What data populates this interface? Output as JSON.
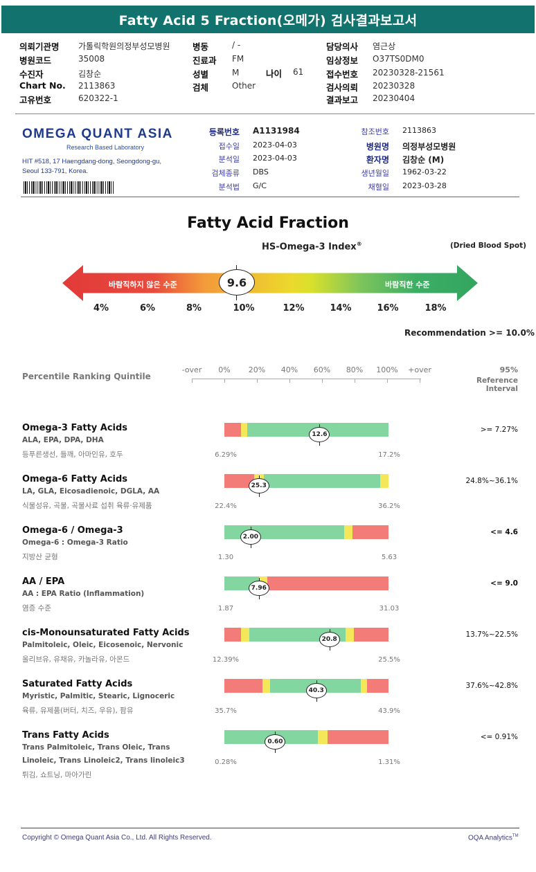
{
  "title": "Fatty Acid 5 Fraction(오메가) 검사결과보고서",
  "header": {
    "col1": [
      {
        "label": "의뢰기관명",
        "value": "가톨릭학원의정부성모병원"
      },
      {
        "label": "병원코드",
        "value": "35008"
      },
      {
        "label": "수진자",
        "value": "김창순"
      },
      {
        "label": "Chart No.",
        "value": "2113863"
      },
      {
        "label": "고유번호",
        "value": "620322-1"
      }
    ],
    "col2": [
      {
        "label": "병동",
        "value": "/ -"
      },
      {
        "label": "진료과",
        "value": "FM"
      },
      {
        "label": "성별",
        "value": "M"
      },
      {
        "label": "검체",
        "value": "Other"
      }
    ],
    "age": {
      "label": "나이",
      "value": "61"
    },
    "col3": [
      {
        "label": "담당의사",
        "value": "염근상"
      },
      {
        "label": "임상정보",
        "value": "O37TS0DM0"
      },
      {
        "label": "접수번호",
        "value": "20230328-21561"
      },
      {
        "label": "검사의뢰",
        "value": "20230328"
      },
      {
        "label": "결과보고",
        "value": "20230404"
      }
    ]
  },
  "lab": {
    "logo_main": "OMEGA QUANT ASIA",
    "logo_sub": "Research Based Laboratory",
    "address1": "HIT #518, 17 Haengdang-dong, Seongdong-gu,",
    "address2": "Seoul 133-791, Korea.",
    "left": [
      {
        "label": "등록번호",
        "value": "A1131984"
      },
      {
        "label": "접수일",
        "value": "2023-04-03"
      },
      {
        "label": "분석일",
        "value": "2023-04-03"
      },
      {
        "label": "검체종류",
        "value": "DBS"
      },
      {
        "label": "분석법",
        "value": "G/C"
      }
    ],
    "right": [
      {
        "label": "참조번호",
        "value": "2113863"
      },
      {
        "label": "병원명",
        "value": "의정부성모병원"
      },
      {
        "label": "환자명",
        "value": "김창순 (M)"
      },
      {
        "label": "생년월일",
        "value": "1962-03-22"
      },
      {
        "label": "채혈일",
        "value": "2023-03-28"
      }
    ]
  },
  "fraction": {
    "title": "Fatty Acid Fraction",
    "subtitle": "HS-Omega-3 Index",
    "subtitle_mark": "®",
    "specimen": "(Dried Blood Spot)",
    "bad_label": "바람직하지 않은 수준",
    "good_label": "바람직한 수준",
    "score": "9.6",
    "scale": [
      "4%",
      "6%",
      "8%",
      "10%",
      "12%",
      "14%",
      "16%",
      "18%"
    ],
    "recommendation": "Recommendation  >= 10.0%"
  },
  "percentile": {
    "label": "Percentile Ranking Quintile",
    "axis": [
      "-over",
      "0%",
      "20%",
      "40%",
      "60%",
      "80%",
      "100%",
      "+over"
    ],
    "ref_top": "95%",
    "ref_bottom": "Reference Interval"
  },
  "rows": [
    {
      "name": "Omega-3 Fatty Acids",
      "sub": "ALA, EPA, DPA, DHA",
      "food": "등푸른생선, 들깨, 아마인유, 호두",
      "min": "6.29%",
      "max": "17.2%",
      "value": "12.6",
      "position": 0.58,
      "ref": ">= 7.27%",
      "ref_bold": false,
      "segments": [
        [
          "#f47c78",
          0.1
        ],
        [
          "#f4e85a",
          0.04
        ],
        [
          "#84d6a0",
          0.86
        ]
      ]
    },
    {
      "name": "Omega-6 Fatty Acids",
      "sub": "LA, GLA, Eicosadienoic, DGLA, AA",
      "food": "식물성유, 곡물, 곡물사료 섭취 육류·유제품",
      "min": "22.4%",
      "max": "36.2%",
      "value": "25.3",
      "position": 0.21,
      "ref": "24.8%~36.1%",
      "ref_bold": false,
      "segments": [
        [
          "#f47c78",
          0.18
        ],
        [
          "#f4e85a",
          0.06
        ],
        [
          "#84d6a0",
          0.71
        ],
        [
          "#f4e85a",
          0.05
        ]
      ]
    },
    {
      "name": "Omega-6 / Omega-3",
      "sub": "Omega-6 : Omega-3 Ratio",
      "food": "지방산 균형",
      "min": "1.30",
      "max": "5.63",
      "value": "2.00",
      "position": 0.16,
      "ref": "<= 4.6",
      "ref_bold": true,
      "segments": [
        [
          "#84d6a0",
          0.73
        ],
        [
          "#f4e85a",
          0.05
        ],
        [
          "#f47c78",
          0.22
        ]
      ]
    },
    {
      "name": "AA / EPA",
      "sub": "AA : EPA Ratio (Inflammation)",
      "food": "염증 수준",
      "min": "1.87",
      "max": "31.03",
      "value": "7.96",
      "position": 0.21,
      "ref": "<= 9.0",
      "ref_bold": true,
      "segments": [
        [
          "#84d6a0",
          0.21
        ],
        [
          "#f4e85a",
          0.05
        ],
        [
          "#f47c78",
          0.74
        ]
      ]
    },
    {
      "name": "cis-Monounsaturated Fatty Acids",
      "sub": "Palmitoleic, Oleic, Eicosenoic, Nervonic",
      "food": "올리브유, 유채유, 카놀라유, 아몬드",
      "min": "12.39%",
      "max": "25.5%",
      "value": "20.8",
      "position": 0.64,
      "ref": "13.7%~22.5%",
      "ref_bold": false,
      "segments": [
        [
          "#f47c78",
          0.1
        ],
        [
          "#f4e85a",
          0.05
        ],
        [
          "#84d6a0",
          0.59
        ],
        [
          "#f4e85a",
          0.05
        ],
        [
          "#f47c78",
          0.21
        ]
      ]
    },
    {
      "name": "Saturated Fatty Acids",
      "sub": "Myristic, Palmitic, Stearic, Lignoceric",
      "food": "육류, 유제품(버터, 치즈, 우유), 팜유",
      "min": "35.7%",
      "max": "43.9%",
      "value": "40.3",
      "position": 0.56,
      "ref": "37.6%~42.8%",
      "ref_bold": false,
      "segments": [
        [
          "#f47c78",
          0.23
        ],
        [
          "#f4e85a",
          0.05
        ],
        [
          "#84d6a0",
          0.55
        ],
        [
          "#f4e85a",
          0.04
        ],
        [
          "#f47c78",
          0.13
        ]
      ]
    },
    {
      "name": "Trans Fatty Acids",
      "sub": "Trans Palmitoleic, Trans Oleic, Trans",
      "sub2": "Linoleic, Trans Linoleic2, Trans linoleic3",
      "food": "튀김, 쇼트닝, 마아가린",
      "min": "0.28%",
      "max": "1.31%",
      "value": "0.60",
      "position": 0.31,
      "ref": "<= 0.91%",
      "ref_bold": false,
      "segments": [
        [
          "#84d6a0",
          0.57
        ],
        [
          "#f4e85a",
          0.06
        ],
        [
          "#f47c78",
          0.37
        ]
      ]
    }
  ],
  "footer": {
    "copyright": "Copyright © Omega Quant Asia Co., Ltd.  All Rights Reserved.",
    "brand": "OQA Analytics",
    "brand_mark": "TM"
  }
}
